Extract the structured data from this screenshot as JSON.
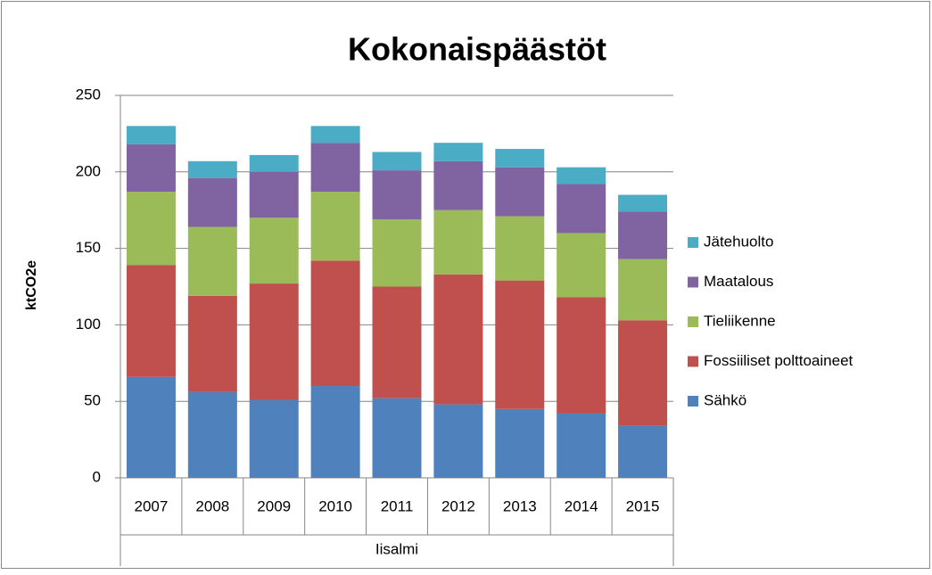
{
  "chart_data": {
    "type": "stacked_bar",
    "title": "Kokonaispäästöt",
    "y_label": "ktCO2e",
    "categories": [
      "2007",
      "2008",
      "2009",
      "2010",
      "2011",
      "2012",
      "2013",
      "2014",
      "2015"
    ],
    "category_group": "Iisalmi",
    "series": [
      {
        "name": "Sähkö",
        "color": "#4f81bd",
        "values": [
          66,
          56,
          51,
          60,
          52,
          48,
          45,
          42,
          34
        ]
      },
      {
        "name": "Fossiiliset polttoaineet",
        "color": "#c0504d",
        "values": [
          73,
          63,
          76,
          82,
          73,
          85,
          84,
          76,
          69
        ]
      },
      {
        "name": "Tieliikenne",
        "color": "#9bbb59",
        "values": [
          48,
          45,
          43,
          45,
          44,
          42,
          42,
          42,
          40
        ]
      },
      {
        "name": "Maatalous",
        "color": "#8064a2",
        "values": [
          31,
          32,
          30,
          32,
          32,
          32,
          32,
          32,
          31
        ]
      },
      {
        "name": "Jätehuolto",
        "color": "#4bacc6",
        "values": [
          12,
          11,
          11,
          11,
          12,
          12,
          12,
          11,
          11
        ]
      }
    ],
    "ylim": [
      0,
      250
    ],
    "yticks": [
      0,
      50,
      100,
      150,
      200,
      250
    ],
    "grid": true,
    "legend": "right"
  }
}
